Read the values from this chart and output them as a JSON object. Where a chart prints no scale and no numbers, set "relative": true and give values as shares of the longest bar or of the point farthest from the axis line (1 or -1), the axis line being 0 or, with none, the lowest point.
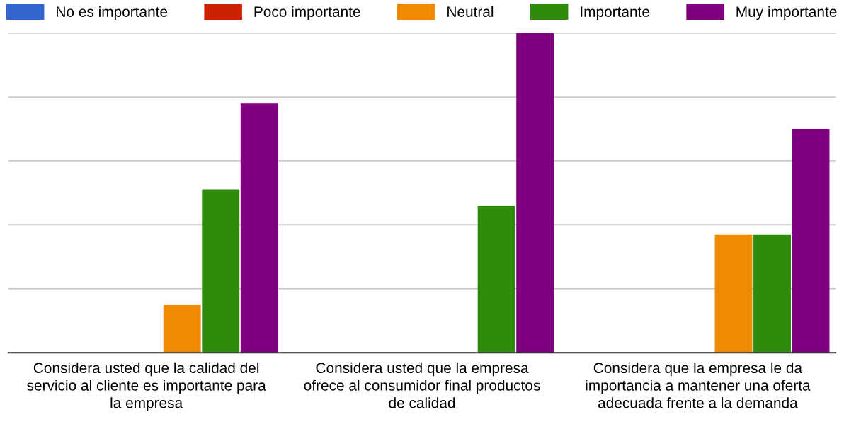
{
  "chart_data": {
    "type": "bar",
    "relative": true,
    "grid": "y",
    "legend": "top",
    "categories": [
      "Considera usted que la calidad del servicio al cliente es importante para la empresa",
      "Considera usted que la empresa ofrece al consumidor final productos de calidad",
      "Considera que la empresa le da importancia a mantener una oferta adecuada frente a la demanda"
    ],
    "series": [
      {
        "name": "No es importante",
        "color": "#3366cc",
        "values": [
          0,
          0,
          0
        ]
      },
      {
        "name": "Poco importante",
        "color": "#cc2200",
        "values": [
          0,
          0,
          0
        ]
      },
      {
        "name": "Neutral",
        "color": "#f08a00",
        "values": [
          0.15,
          0,
          0.37
        ]
      },
      {
        "name": "Importante",
        "color": "#2e8a0a",
        "values": [
          0.51,
          0.46,
          0.37
        ]
      },
      {
        "name": "Muy importante",
        "color": "#800080",
        "values": [
          0.78,
          1,
          0.7
        ]
      }
    ]
  }
}
